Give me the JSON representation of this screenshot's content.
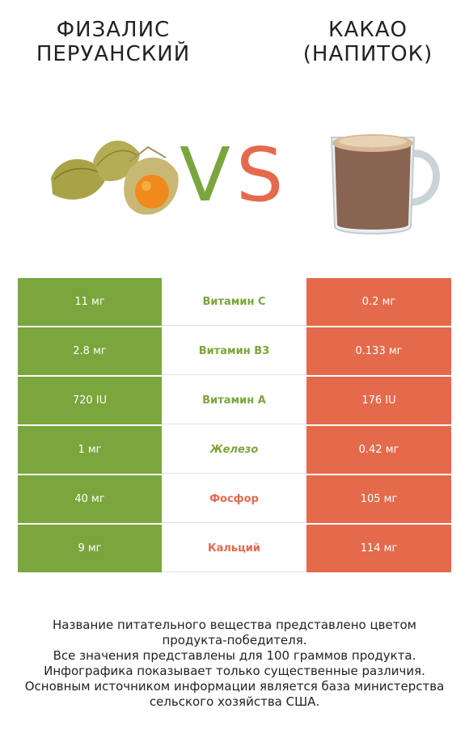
{
  "header": {
    "left_title_line1": "ФИЗАЛИС",
    "left_title_line2": "ПЕРУАНСКИЙ",
    "right_title_line1": "КАКАО",
    "right_title_line2": "(НАПИТОК)",
    "vs_left_letter": "V",
    "vs_right_letter": "S"
  },
  "colors": {
    "left_accent": "#7ba53d",
    "right_accent": "#e56a4c"
  },
  "rows": [
    {
      "left": "11 мг",
      "nutrient": "Витамин C",
      "right": "0.2 мг",
      "winner": "left"
    },
    {
      "left": "2.8 мг",
      "nutrient": "Витамин B3",
      "right": "0.133 мг",
      "winner": "left"
    },
    {
      "left": "720 IU",
      "nutrient": "Витамин A",
      "right": "176 IU",
      "winner": "left"
    },
    {
      "left": "1 мг",
      "nutrient": "Железо",
      "right": "0.42 мг",
      "winner": "left"
    },
    {
      "left": "40 мг",
      "nutrient": "Фосфор",
      "right": "105 мг",
      "winner": "right"
    },
    {
      "left": "9 мг",
      "nutrient": "Кальций",
      "right": "114 мг",
      "winner": "right"
    }
  ],
  "footer": {
    "line1": "Название питательного вещества представлено цветом",
    "line2": "продукта-победителя.",
    "line3": "Все значения представлены для 100 граммов продукта.",
    "line4": "Инфографика показывает только существенные различия.",
    "line5": "Основным источником информации является база министерства",
    "line6": "сельского хозяйства США."
  }
}
